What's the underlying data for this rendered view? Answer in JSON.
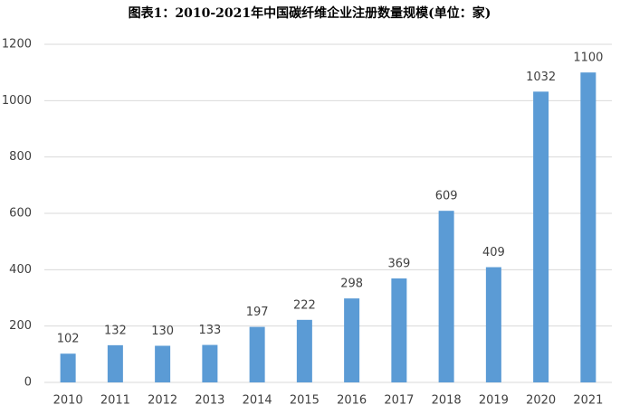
{
  "chart_data": {
    "type": "bar",
    "title": "图表1：2010-2021年中国碳纤维企业注册数量规模(单位：家)",
    "categories": [
      "2010",
      "2011",
      "2012",
      "2013",
      "2014",
      "2015",
      "2016",
      "2017",
      "2018",
      "2019",
      "2020",
      "2021"
    ],
    "values": [
      102,
      132,
      130,
      133,
      197,
      222,
      298,
      369,
      609,
      409,
      1032,
      1100
    ],
    "color": "#5b9bd5",
    "ylim": [
      0,
      1200
    ],
    "yticks": [
      0,
      200,
      400,
      600,
      800,
      1000,
      1200
    ],
    "grid": true
  }
}
